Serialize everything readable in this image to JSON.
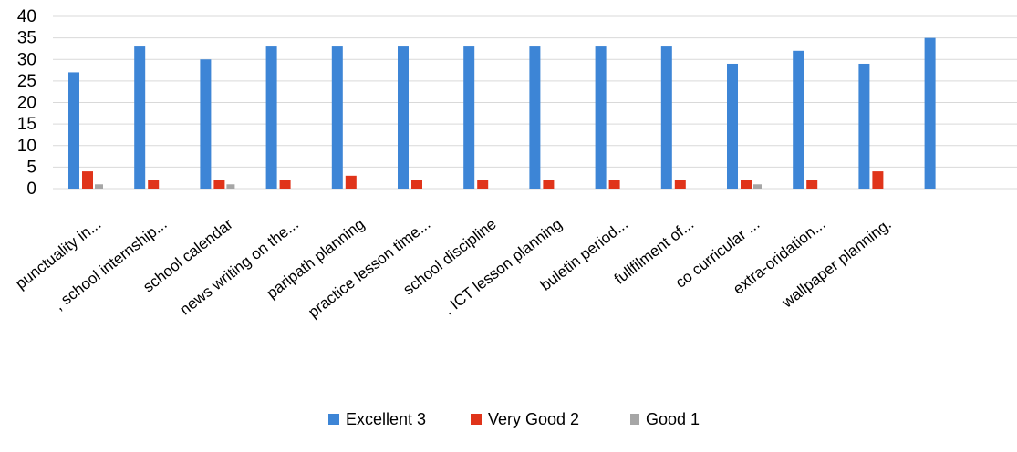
{
  "chart_data": {
    "type": "bar",
    "title": "",
    "xlabel": "",
    "ylabel": "",
    "ylim": [
      0,
      40
    ],
    "yticks": [
      0,
      5,
      10,
      15,
      20,
      25,
      30,
      35,
      40
    ],
    "grid": true,
    "legend_position": "bottom",
    "categories": [
      "punctuality in...",
      ", school internship...",
      "school calendar",
      "news writing on the...",
      "paripath planning",
      "practice lesson time...",
      "school discipline",
      ", ICT lesson planning",
      "buletin  period...",
      "fullfilment of...",
      "co curricular ...",
      "extra-oridation...",
      "wallpaper planning.",
      ""
    ],
    "series": [
      {
        "name": "Excellent 3",
        "color": "#3d85d6",
        "values": [
          27,
          33,
          30,
          33,
          33,
          33,
          33,
          33,
          33,
          33,
          29,
          32,
          29,
          35
        ]
      },
      {
        "name": "Very Good 2",
        "color": "#e0341a",
        "values": [
          4,
          2,
          2,
          2,
          3,
          2,
          2,
          2,
          2,
          2,
          2,
          2,
          4,
          0
        ]
      },
      {
        "name": "Good 1",
        "color": "#a6a6a6",
        "values": [
          1,
          0,
          1,
          0,
          0,
          0,
          0,
          0,
          0,
          0,
          1,
          0,
          0,
          0
        ]
      }
    ]
  }
}
